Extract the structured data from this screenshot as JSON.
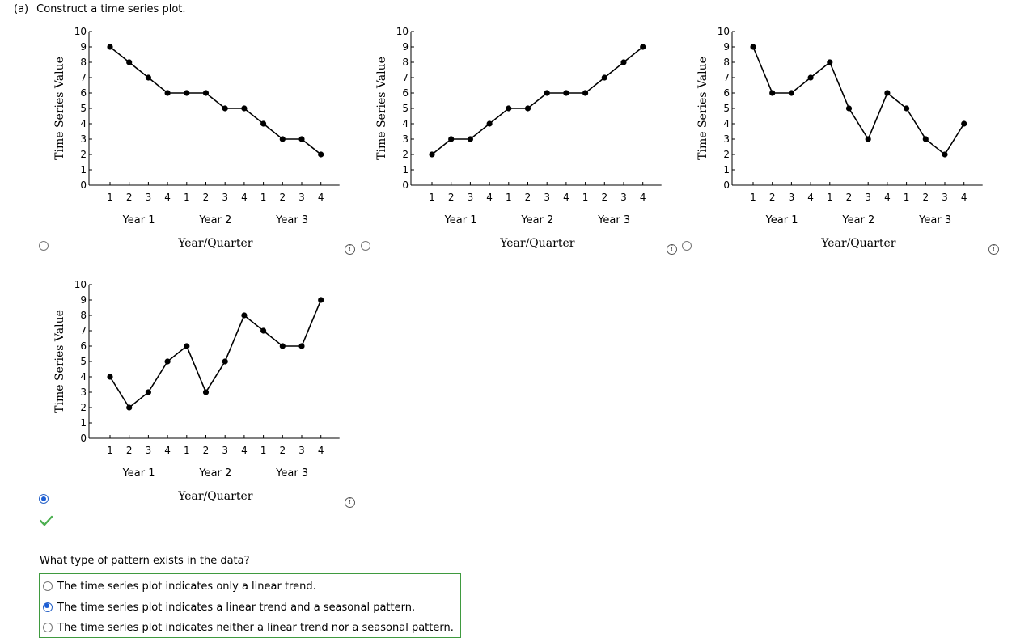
{
  "question": {
    "part": "(a)",
    "text": "Construct a time series plot."
  },
  "plot_labels": {
    "ylabel": "Time Series Value",
    "xlabel": "Year/Quarter",
    "quarters": [
      "1",
      "2",
      "3",
      "4"
    ],
    "years": [
      "Year 1",
      "Year 2",
      "Year 3"
    ],
    "yticks": [
      "0",
      "1",
      "2",
      "3",
      "4",
      "5",
      "6",
      "7",
      "8",
      "9",
      "10"
    ]
  },
  "options": [
    {
      "id": "option-a",
      "selected": false
    },
    {
      "id": "option-b",
      "selected": false
    },
    {
      "id": "option-c",
      "selected": false
    },
    {
      "id": "option-d",
      "selected": true,
      "status": "correct"
    }
  ],
  "chart_data": [
    {
      "type": "line",
      "ylim": [
        0,
        10
      ],
      "values": [
        9,
        8,
        7,
        6,
        6,
        6,
        5,
        5,
        4,
        3,
        3,
        2
      ]
    },
    {
      "type": "line",
      "ylim": [
        0,
        10
      ],
      "values": [
        2,
        3,
        3,
        4,
        5,
        5,
        6,
        6,
        6,
        7,
        8,
        9
      ]
    },
    {
      "type": "line",
      "ylim": [
        0,
        10
      ],
      "values": [
        9,
        6,
        6,
        7,
        8,
        5,
        3,
        6,
        5,
        3,
        2,
        4
      ]
    },
    {
      "type": "line",
      "ylim": [
        0,
        10
      ],
      "values": [
        4,
        2,
        3,
        5,
        6,
        3,
        5,
        8,
        7,
        6,
        6,
        9
      ]
    }
  ],
  "pattern_question": {
    "text": "What type of pattern exists in the data?",
    "choices": [
      {
        "label": "The time series plot indicates only a linear trend.",
        "selected": false
      },
      {
        "label": "The time series plot indicates a linear trend and a seasonal pattern.",
        "selected": true
      },
      {
        "label": "The time series plot indicates neither a linear trend nor a seasonal pattern.",
        "selected": false
      }
    ]
  },
  "colors": {
    "selected": "#1b5ed6",
    "correct": "#3f9a3f",
    "line": "#000000"
  },
  "icons": {
    "info": "info-icon",
    "check": "check-icon"
  }
}
